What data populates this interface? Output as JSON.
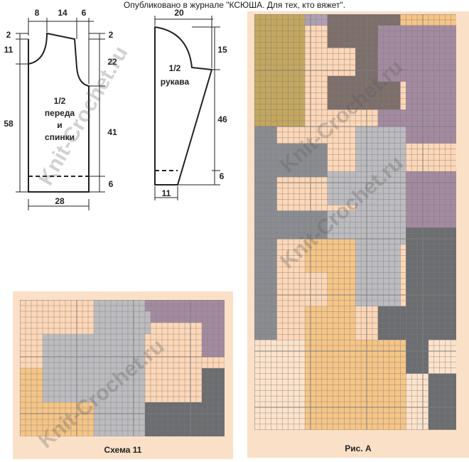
{
  "header": {
    "publication": "Опубликовано в журнале \"КСЮША. Для тех, кто вяжет\"."
  },
  "body_schematic": {
    "label_line1": "1/2",
    "label_line2": "переда",
    "label_line3": "и",
    "label_line4": "спинки",
    "top_dims": [
      "8",
      "14",
      "6"
    ],
    "left_dims": [
      "2",
      "11",
      "58"
    ],
    "right_dims": [
      "2",
      "22",
      "41",
      "6"
    ],
    "bottom_dim": "28"
  },
  "sleeve_schematic": {
    "label_line1": "1/2",
    "label_line2": "рукава",
    "top_dim": "20",
    "right_dims": [
      "15",
      "46",
      "6"
    ],
    "bottom_dim": "11"
  },
  "scheme11": {
    "caption": "Схема 11",
    "watermark": "Knit-Crochet.ru"
  },
  "figA": {
    "caption": "Рис. А",
    "watermark_top": "Knit-Crochet.ru",
    "watermark_bottom": "Knit-Crochet.ru"
  },
  "left_watermark": "Knit-Crochet.ru",
  "palette": {
    "peach": "#fdd7b7",
    "cream": "#fde3cb",
    "sand": "#f6c586",
    "light_gray": "#bcbcc0",
    "mid_gray": "#8a8c91",
    "dark_gray": "#6b6d70",
    "lilac": "#a48aa0",
    "dusty_violet": "#b0a0b4",
    "brown": "#7d6e6a",
    "mustard": "#c4a75e",
    "frame": "#fbe0c8",
    "grid_line": "#7e7e7e",
    "ink": "#1a1a1a"
  }
}
